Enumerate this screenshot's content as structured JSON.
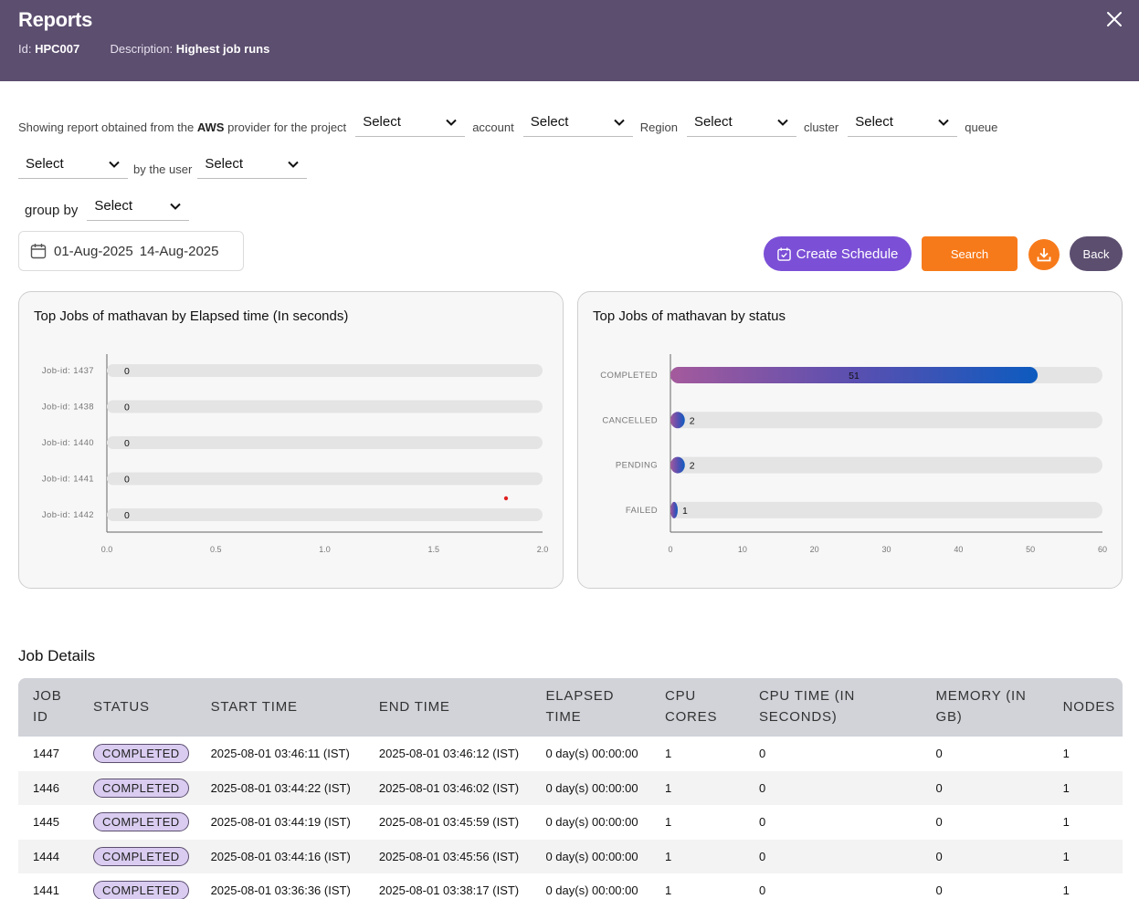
{
  "header": {
    "title": "Reports",
    "id_label": "Id:",
    "id_value": "HPC007",
    "desc_label": "Description:",
    "desc_value": "Highest job runs"
  },
  "filters": {
    "intro_pre": "Showing report obtained from the",
    "provider": "AWS",
    "intro_post": "provider for the project",
    "project": "Select",
    "account_label": "account",
    "account": "Select",
    "region_label": "Region",
    "region": "Select",
    "cluster_label": "cluster",
    "cluster": "Select",
    "queue_label": "queue",
    "queue": "Select",
    "user_label": "by the user",
    "user": "Select",
    "groupby_label": "group by",
    "groupby": "Select"
  },
  "date_range": {
    "start": "01-Aug-2025",
    "end": "14-Aug-2025"
  },
  "buttons": {
    "create_schedule": "Create Schedule",
    "search": "Search",
    "back": "Back"
  },
  "colors": {
    "header": "#5c4e6f",
    "accent_purple": "#7b4fd6",
    "accent_orange": "#f77a1a"
  },
  "chart_data": [
    {
      "type": "bar",
      "orientation": "horizontal",
      "title": "Top Jobs of mathavan by Elapsed time (In seconds)",
      "categories": [
        "Job-id: 1437",
        "Job-id: 1438",
        "Job-id: 1440",
        "Job-id: 1441",
        "Job-id: 1442"
      ],
      "values": [
        0,
        0,
        0,
        0,
        0
      ],
      "xlim": [
        0,
        2
      ],
      "xticks": [
        "0.0",
        "0.5",
        "1.0",
        "1.5",
        "2.0"
      ]
    },
    {
      "type": "bar",
      "orientation": "horizontal",
      "title": "Top Jobs of mathavan by status",
      "categories": [
        "COMPLETED",
        "CANCELLED",
        "PENDING",
        "FAILED"
      ],
      "values": [
        51,
        2,
        2,
        1
      ],
      "xlim": [
        0,
        60
      ],
      "xticks": [
        "0",
        "10",
        "20",
        "30",
        "40",
        "50",
        "60"
      ]
    }
  ],
  "job_details": {
    "title": "Job Details",
    "columns": [
      [
        "JOB",
        "ID"
      ],
      [
        "STATUS"
      ],
      [
        "START TIME"
      ],
      [
        "END TIME"
      ],
      [
        "ELAPSED",
        "TIME"
      ],
      [
        "CPU",
        "CORES"
      ],
      [
        "CPU TIME (IN",
        "SECONDS)"
      ],
      [
        "MEMORY (IN",
        "GB)"
      ],
      [
        "NODES"
      ]
    ],
    "rows": [
      [
        "1447",
        "COMPLETED",
        "2025-08-01 03:46:11 (IST)",
        "2025-08-01 03:46:12 (IST)",
        "0 day(s) 00:00:00",
        "1",
        "0",
        "0",
        "1"
      ],
      [
        "1446",
        "COMPLETED",
        "2025-08-01 03:44:22 (IST)",
        "2025-08-01 03:46:02 (IST)",
        "0 day(s) 00:00:00",
        "1",
        "0",
        "0",
        "1"
      ],
      [
        "1445",
        "COMPLETED",
        "2025-08-01 03:44:19 (IST)",
        "2025-08-01 03:45:59 (IST)",
        "0 day(s) 00:00:00",
        "1",
        "0",
        "0",
        "1"
      ],
      [
        "1444",
        "COMPLETED",
        "2025-08-01 03:44:16 (IST)",
        "2025-08-01 03:45:56 (IST)",
        "0 day(s) 00:00:00",
        "1",
        "0",
        "0",
        "1"
      ],
      [
        "1441",
        "COMPLETED",
        "2025-08-01 03:36:36 (IST)",
        "2025-08-01 03:38:17 (IST)",
        "0 day(s) 00:00:00",
        "1",
        "0",
        "0",
        "1"
      ]
    ]
  }
}
